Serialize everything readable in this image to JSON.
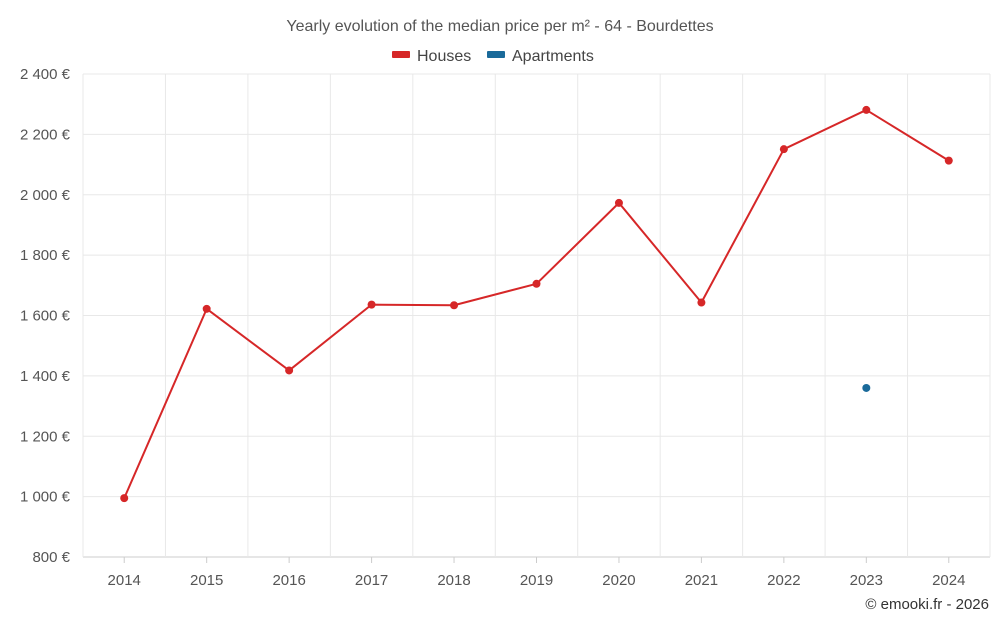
{
  "chart_data": {
    "type": "line",
    "title": "Yearly evolution of the median price per m² - 64 - Bourdettes",
    "xlabel": "",
    "ylabel": "",
    "categories": [
      "2014",
      "2015",
      "2016",
      "2017",
      "2018",
      "2019",
      "2020",
      "2021",
      "2022",
      "2023",
      "2024"
    ],
    "ylim": [
      800,
      2400
    ],
    "yticks": [
      800,
      1000,
      1200,
      1400,
      1600,
      1800,
      2000,
      2200,
      2400
    ],
    "ytick_labels": [
      "800 €",
      "1 000 €",
      "1 200 €",
      "1 400 €",
      "1 600 €",
      "1 800 €",
      "2 000 €",
      "2 200 €",
      "2 400 €"
    ],
    "grid": true,
    "legend_position": "top-center",
    "series": [
      {
        "name": "Houses",
        "color": "#d62728",
        "values": [
          995,
          1622,
          1418,
          1636,
          1634,
          1705,
          1973,
          1643,
          2151,
          2281,
          2113
        ]
      },
      {
        "name": "Apartments",
        "color": "#1a6a9a",
        "values": [
          null,
          null,
          null,
          null,
          null,
          null,
          null,
          null,
          null,
          1360,
          null
        ]
      }
    ],
    "credit": "© emooki.fr - 2026"
  }
}
